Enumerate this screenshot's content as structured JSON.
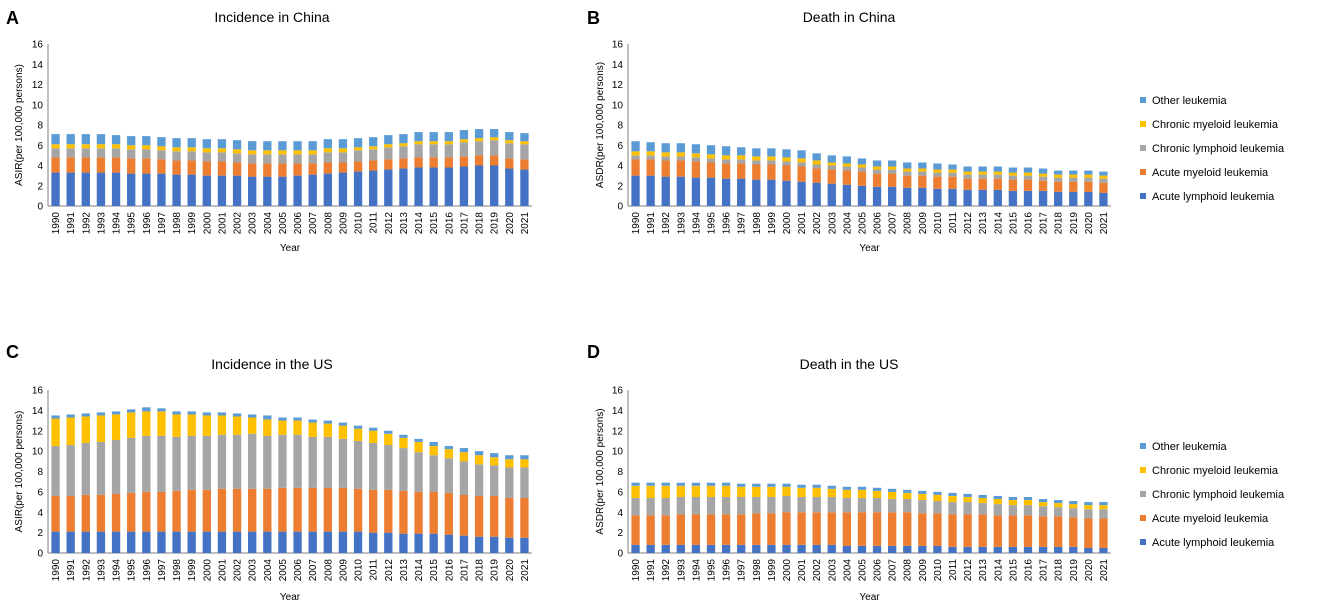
{
  "colors": {
    "all": "#4472C4",
    "aml": "#ED7D31",
    "cll": "#A5A5A5",
    "cml": "#FFC000",
    "other": "#5B9BD5"
  },
  "legend_items": [
    {
      "key": "other",
      "label": "Other leukemia"
    },
    {
      "key": "cml",
      "label": "Chronic myeloid leukemia"
    },
    {
      "key": "cll",
      "label": "Chronic lymphoid leukemia"
    },
    {
      "key": "aml",
      "label": "Acute myeloid leukemia"
    },
    {
      "key": "all",
      "label": "Acute lymphoid leukemia"
    }
  ],
  "chart_data": [
    {
      "panel": "A",
      "type": "bar",
      "stacked": true,
      "title": "Incidence in China",
      "xlabel": "Year",
      "ylabel": "ASIR(per 100,000 persons)",
      "ylim": [
        0,
        16
      ],
      "yticks": [
        0,
        2,
        4,
        6,
        8,
        10,
        12,
        14,
        16
      ],
      "categories": [
        "1990",
        "1991",
        "1992",
        "1993",
        "1994",
        "1995",
        "1996",
        "1997",
        "1998",
        "1999",
        "2000",
        "2001",
        "2002",
        "2003",
        "2004",
        "2005",
        "2006",
        "2007",
        "2008",
        "2009",
        "2010",
        "2011",
        "2012",
        "2013",
        "2014",
        "2015",
        "2016",
        "2017",
        "2018",
        "2019",
        "2020",
        "2021"
      ],
      "series": [
        {
          "key": "all",
          "name": "Acute lymphoid leukemia",
          "values": [
            3.3,
            3.3,
            3.3,
            3.3,
            3.3,
            3.2,
            3.2,
            3.2,
            3.1,
            3.1,
            3.0,
            3.0,
            3.0,
            2.9,
            2.9,
            2.9,
            3.0,
            3.1,
            3.2,
            3.3,
            3.4,
            3.5,
            3.6,
            3.7,
            3.8,
            3.8,
            3.8,
            3.9,
            4.0,
            4.0,
            3.7,
            3.6
          ]
        },
        {
          "key": "aml",
          "name": "Acute myeloid leukemia",
          "values": [
            1.5,
            1.5,
            1.5,
            1.5,
            1.5,
            1.5,
            1.5,
            1.4,
            1.4,
            1.4,
            1.4,
            1.4,
            1.3,
            1.3,
            1.3,
            1.3,
            1.2,
            1.1,
            1.1,
            1.0,
            1.0,
            1.0,
            1.0,
            1.0,
            1.0,
            1.0,
            1.0,
            1.0,
            1.0,
            1.0,
            1.0,
            1.0
          ]
        },
        {
          "key": "cll",
          "name": "Chronic lymphoid leukemia",
          "values": [
            0.9,
            0.9,
            0.9,
            0.9,
            0.9,
            0.9,
            0.9,
            0.9,
            0.9,
            0.9,
            0.9,
            0.9,
            0.9,
            0.9,
            0.9,
            0.9,
            0.9,
            0.9,
            1.0,
            1.0,
            1.1,
            1.1,
            1.2,
            1.2,
            1.3,
            1.3,
            1.3,
            1.4,
            1.4,
            1.5,
            1.5,
            1.5
          ]
        },
        {
          "key": "cml",
          "name": "Chronic myeloid leukemia",
          "values": [
            0.4,
            0.4,
            0.4,
            0.4,
            0.4,
            0.4,
            0.4,
            0.4,
            0.4,
            0.4,
            0.4,
            0.4,
            0.4,
            0.4,
            0.4,
            0.4,
            0.4,
            0.4,
            0.4,
            0.4,
            0.3,
            0.3,
            0.3,
            0.3,
            0.3,
            0.3,
            0.3,
            0.3,
            0.3,
            0.3,
            0.3,
            0.3
          ]
        },
        {
          "key": "other",
          "name": "Other leukemia",
          "values": [
            1.0,
            1.0,
            1.0,
            1.0,
            0.9,
            0.9,
            0.9,
            0.9,
            0.9,
            0.9,
            0.9,
            0.9,
            0.9,
            0.9,
            0.9,
            0.9,
            0.9,
            0.9,
            0.9,
            0.9,
            0.9,
            0.9,
            0.9,
            0.9,
            0.9,
            0.9,
            0.9,
            0.9,
            0.9,
            0.8,
            0.8,
            0.8
          ]
        }
      ]
    },
    {
      "panel": "B",
      "type": "bar",
      "stacked": true,
      "title": "Death in China",
      "xlabel": "Year",
      "ylabel": "ASDR(per 100,000 persons)",
      "ylim": [
        0,
        16
      ],
      "yticks": [
        0,
        2,
        4,
        6,
        8,
        10,
        12,
        14,
        16
      ],
      "categories": [
        "1990",
        "1991",
        "1992",
        "1993",
        "1994",
        "1995",
        "1996",
        "1997",
        "1998",
        "1999",
        "2000",
        "2001",
        "2002",
        "2003",
        "2004",
        "2005",
        "2006",
        "2007",
        "2008",
        "2009",
        "2010",
        "2011",
        "2012",
        "2013",
        "2014",
        "2015",
        "2016",
        "2017",
        "2018",
        "2019",
        "2020",
        "2021"
      ],
      "series": [
        {
          "key": "all",
          "name": "Acute lymphoid leukemia",
          "values": [
            3.0,
            3.0,
            2.9,
            2.9,
            2.8,
            2.8,
            2.7,
            2.7,
            2.6,
            2.6,
            2.5,
            2.4,
            2.3,
            2.2,
            2.1,
            2.0,
            1.9,
            1.9,
            1.8,
            1.8,
            1.7,
            1.7,
            1.6,
            1.6,
            1.6,
            1.5,
            1.5,
            1.5,
            1.4,
            1.4,
            1.4,
            1.3
          ]
        },
        {
          "key": "aml",
          "name": "Acute myeloid leukemia",
          "values": [
            1.6,
            1.6,
            1.6,
            1.6,
            1.6,
            1.5,
            1.5,
            1.5,
            1.5,
            1.5,
            1.5,
            1.5,
            1.4,
            1.4,
            1.4,
            1.4,
            1.3,
            1.3,
            1.2,
            1.2,
            1.2,
            1.2,
            1.1,
            1.1,
            1.1,
            1.1,
            1.1,
            1.0,
            1.0,
            1.0,
            1.0,
            1.0
          ]
        },
        {
          "key": "cll",
          "name": "Chronic lymphoid leukemia",
          "values": [
            0.4,
            0.4,
            0.4,
            0.4,
            0.4,
            0.4,
            0.4,
            0.4,
            0.4,
            0.4,
            0.4,
            0.4,
            0.4,
            0.4,
            0.4,
            0.4,
            0.4,
            0.4,
            0.4,
            0.4,
            0.4,
            0.4,
            0.4,
            0.4,
            0.4,
            0.4,
            0.4,
            0.4,
            0.4,
            0.4,
            0.4,
            0.4
          ]
        },
        {
          "key": "cml",
          "name": "Chronic myeloid leukemia",
          "values": [
            0.4,
            0.4,
            0.4,
            0.4,
            0.4,
            0.4,
            0.4,
            0.4,
            0.4,
            0.4,
            0.4,
            0.4,
            0.4,
            0.3,
            0.3,
            0.3,
            0.3,
            0.3,
            0.3,
            0.3,
            0.3,
            0.3,
            0.3,
            0.3,
            0.3,
            0.3,
            0.3,
            0.3,
            0.3,
            0.3,
            0.3,
            0.3
          ]
        },
        {
          "key": "other",
          "name": "Other leukemia",
          "values": [
            1.0,
            0.9,
            0.9,
            0.9,
            0.9,
            0.9,
            0.9,
            0.8,
            0.8,
            0.8,
            0.8,
            0.8,
            0.7,
            0.7,
            0.7,
            0.6,
            0.6,
            0.6,
            0.6,
            0.6,
            0.6,
            0.5,
            0.5,
            0.5,
            0.5,
            0.5,
            0.5,
            0.5,
            0.4,
            0.4,
            0.4,
            0.4
          ]
        }
      ]
    },
    {
      "panel": "C",
      "type": "bar",
      "stacked": true,
      "title": "Incidence in the US",
      "xlabel": "Year",
      "ylabel": "ASIR(per 100,000 persons)",
      "ylim": [
        0,
        16
      ],
      "yticks": [
        0,
        2,
        4,
        6,
        8,
        10,
        12,
        14,
        16
      ],
      "categories": [
        "1990",
        "1991",
        "1992",
        "1993",
        "1994",
        "1995",
        "1996",
        "1997",
        "1998",
        "1999",
        "2000",
        "2001",
        "2002",
        "2003",
        "2004",
        "2005",
        "2006",
        "2007",
        "2008",
        "2009",
        "2010",
        "2011",
        "2012",
        "2013",
        "2014",
        "2015",
        "2016",
        "2017",
        "2018",
        "2019",
        "2020",
        "2021"
      ],
      "series": [
        {
          "key": "all",
          "name": "Acute lymphoid leukemia",
          "values": [
            2.1,
            2.1,
            2.1,
            2.1,
            2.1,
            2.1,
            2.1,
            2.1,
            2.1,
            2.1,
            2.1,
            2.1,
            2.1,
            2.1,
            2.1,
            2.1,
            2.1,
            2.1,
            2.1,
            2.1,
            2.1,
            2.0,
            2.0,
            1.9,
            1.9,
            1.9,
            1.8,
            1.7,
            1.6,
            1.6,
            1.5,
            1.5
          ]
        },
        {
          "key": "aml",
          "name": "Acute myeloid leukemia",
          "values": [
            3.5,
            3.5,
            3.6,
            3.6,
            3.7,
            3.8,
            3.9,
            3.9,
            4.0,
            4.1,
            4.1,
            4.2,
            4.2,
            4.2,
            4.2,
            4.3,
            4.3,
            4.3,
            4.3,
            4.3,
            4.2,
            4.2,
            4.2,
            4.2,
            4.1,
            4.1,
            4.1,
            4.0,
            4.0,
            4.0,
            3.9,
            3.9
          ]
        },
        {
          "key": "cll",
          "name": "Chronic lymphoid leukemia",
          "values": [
            4.9,
            5.0,
            5.1,
            5.2,
            5.3,
            5.4,
            5.5,
            5.5,
            5.3,
            5.3,
            5.3,
            5.3,
            5.3,
            5.4,
            5.2,
            5.2,
            5.2,
            5.0,
            5.0,
            4.8,
            4.7,
            4.6,
            4.4,
            4.2,
            3.9,
            3.6,
            3.4,
            3.3,
            3.1,
            3.0,
            3.0,
            3.0
          ]
        },
        {
          "key": "cml",
          "name": "Chronic myeloid leukemia",
          "values": [
            2.7,
            2.7,
            2.6,
            2.6,
            2.5,
            2.5,
            2.4,
            2.4,
            2.2,
            2.1,
            2.0,
            1.9,
            1.8,
            1.6,
            1.6,
            1.4,
            1.4,
            1.4,
            1.3,
            1.3,
            1.2,
            1.2,
            1.1,
            1.0,
            1.0,
            0.9,
            0.9,
            0.9,
            0.9,
            0.8,
            0.8,
            0.8
          ]
        },
        {
          "key": "other",
          "name": "Other leukemia",
          "values": [
            0.3,
            0.3,
            0.3,
            0.3,
            0.3,
            0.3,
            0.4,
            0.3,
            0.3,
            0.3,
            0.3,
            0.3,
            0.3,
            0.3,
            0.4,
            0.3,
            0.3,
            0.3,
            0.3,
            0.3,
            0.3,
            0.3,
            0.3,
            0.3,
            0.3,
            0.4,
            0.3,
            0.4,
            0.4,
            0.4,
            0.4,
            0.4
          ]
        }
      ]
    },
    {
      "panel": "D",
      "type": "bar",
      "stacked": true,
      "title": "Death in the US",
      "xlabel": "Year",
      "ylabel": "ASDR(per 100,000 persons)",
      "ylim": [
        0,
        16
      ],
      "yticks": [
        0,
        2,
        4,
        6,
        8,
        10,
        12,
        14,
        16
      ],
      "categories": [
        "1990",
        "1991",
        "1992",
        "1993",
        "1994",
        "1995",
        "1996",
        "1997",
        "1998",
        "1999",
        "2000",
        "2001",
        "2002",
        "2003",
        "2004",
        "2005",
        "2006",
        "2007",
        "2008",
        "2009",
        "2010",
        "2011",
        "2012",
        "2013",
        "2014",
        "2015",
        "2016",
        "2017",
        "2018",
        "2019",
        "2020",
        "2021"
      ],
      "series": [
        {
          "key": "all",
          "name": "Acute lymphoid leukemia",
          "values": [
            0.8,
            0.8,
            0.8,
            0.8,
            0.8,
            0.8,
            0.8,
            0.8,
            0.8,
            0.8,
            0.8,
            0.8,
            0.8,
            0.8,
            0.7,
            0.7,
            0.7,
            0.7,
            0.7,
            0.7,
            0.7,
            0.6,
            0.6,
            0.6,
            0.6,
            0.6,
            0.6,
            0.6,
            0.6,
            0.6,
            0.5,
            0.5
          ]
        },
        {
          "key": "aml",
          "name": "Acute myeloid leukemia",
          "values": [
            2.9,
            2.9,
            2.9,
            3.0,
            3.0,
            3.0,
            3.0,
            3.0,
            3.1,
            3.1,
            3.2,
            3.2,
            3.2,
            3.2,
            3.3,
            3.3,
            3.3,
            3.3,
            3.3,
            3.2,
            3.2,
            3.2,
            3.2,
            3.2,
            3.1,
            3.1,
            3.1,
            3.0,
            3.0,
            2.9,
            2.9,
            2.9
          ]
        },
        {
          "key": "cll",
          "name": "Chronic lymphoid leukemia",
          "values": [
            1.7,
            1.7,
            1.7,
            1.7,
            1.7,
            1.7,
            1.7,
            1.7,
            1.6,
            1.6,
            1.6,
            1.5,
            1.5,
            1.5,
            1.4,
            1.4,
            1.4,
            1.3,
            1.3,
            1.3,
            1.2,
            1.2,
            1.2,
            1.1,
            1.1,
            1.0,
            1.0,
            1.0,
            0.9,
            0.9,
            0.9,
            0.9
          ]
        },
        {
          "key": "cml",
          "name": "Chronic myeloid leukemia",
          "values": [
            1.2,
            1.2,
            1.2,
            1.1,
            1.1,
            1.1,
            1.1,
            1.0,
            1.0,
            1.0,
            0.9,
            0.9,
            0.9,
            0.8,
            0.8,
            0.8,
            0.7,
            0.7,
            0.6,
            0.6,
            0.6,
            0.6,
            0.5,
            0.5,
            0.5,
            0.5,
            0.5,
            0.4,
            0.4,
            0.4,
            0.4,
            0.4
          ]
        },
        {
          "key": "other",
          "name": "Other leukemia",
          "values": [
            0.3,
            0.3,
            0.3,
            0.3,
            0.3,
            0.3,
            0.3,
            0.3,
            0.3,
            0.3,
            0.3,
            0.3,
            0.3,
            0.3,
            0.3,
            0.3,
            0.3,
            0.3,
            0.3,
            0.3,
            0.3,
            0.3,
            0.3,
            0.3,
            0.3,
            0.3,
            0.3,
            0.3,
            0.3,
            0.3,
            0.3,
            0.3
          ]
        }
      ]
    }
  ]
}
